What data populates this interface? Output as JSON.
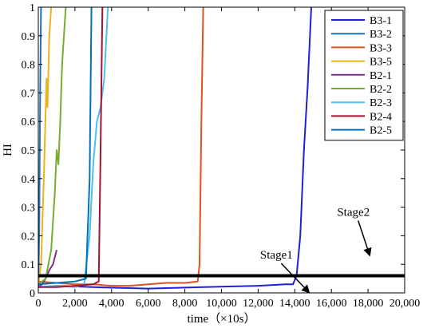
{
  "chart_data": {
    "type": "line",
    "title": "",
    "xlabel": "time（×10s）",
    "ylabel": "HI",
    "xlim": [
      0,
      20000
    ],
    "ylim": [
      0,
      1
    ],
    "xticks": [
      0,
      2000,
      4000,
      6000,
      8000,
      10000,
      12000,
      14000,
      16000,
      18000,
      20000
    ],
    "xtick_labels": [
      "0",
      "2,000",
      "4,000",
      "6,000",
      "8,000",
      "10,000",
      "12,000",
      "14,000",
      "16,000",
      "18,000",
      "20,000"
    ],
    "yticks": [
      0,
      0.1,
      0.2,
      0.3,
      0.4,
      0.5,
      0.6,
      0.7,
      0.8,
      0.9,
      1
    ],
    "ytick_labels": [
      "0",
      "0.1",
      "0.2",
      "0.3",
      "0.4",
      "0.5",
      "0.6",
      "0.7",
      "0.8",
      "0.9",
      "1"
    ],
    "grid": false,
    "legend_position": "top-right",
    "series": [
      {
        "name": "B3-1",
        "color": "#1f1fd6",
        "x": [
          0,
          1000,
          3000,
          6000,
          9000,
          12000,
          13500,
          13900,
          14100,
          14300,
          14500,
          14700,
          14900
        ],
        "y": [
          0.02,
          0.025,
          0.02,
          0.015,
          0.02,
          0.025,
          0.03,
          0.03,
          0.06,
          0.2,
          0.5,
          0.72,
          1.0
        ]
      },
      {
        "name": "B3-2",
        "color": "#1f6fb4",
        "x": [
          0,
          50,
          100,
          150
        ],
        "y": [
          0.02,
          0.2,
          0.7,
          1.0
        ]
      },
      {
        "name": "B3-3",
        "color": "#d9541e",
        "x": [
          0,
          1000,
          2000,
          3000,
          4000,
          5000,
          6000,
          7000,
          8000,
          8700,
          8800,
          8900,
          9000
        ],
        "y": [
          0.04,
          0.035,
          0.03,
          0.03,
          0.025,
          0.025,
          0.03,
          0.035,
          0.035,
          0.04,
          0.1,
          0.6,
          1.0
        ]
      },
      {
        "name": "B3-5",
        "color": "#edb120",
        "x": [
          0,
          150,
          300,
          450,
          500,
          600,
          700
        ],
        "y": [
          0.03,
          0.1,
          0.4,
          0.75,
          0.65,
          0.9,
          1.0
        ]
      },
      {
        "name": "B2-1",
        "color": "#7e2f8e",
        "x": [
          0,
          200,
          400,
          600,
          800,
          1000
        ],
        "y": [
          0.02,
          0.03,
          0.05,
          0.08,
          0.1,
          0.15
        ]
      },
      {
        "name": "B2-2",
        "color": "#77ac30",
        "x": [
          0,
          400,
          700,
          900,
          1000,
          1100,
          1200,
          1300,
          1500
        ],
        "y": [
          0.03,
          0.05,
          0.15,
          0.35,
          0.5,
          0.45,
          0.6,
          0.8,
          1.0
        ]
      },
      {
        "name": "B2-3",
        "color": "#4dbeee",
        "x": [
          0,
          1000,
          2000,
          2500,
          2800,
          3000,
          3200,
          3400,
          3600,
          3800
        ],
        "y": [
          0.02,
          0.025,
          0.02,
          0.03,
          0.2,
          0.45,
          0.6,
          0.65,
          0.75,
          1.0
        ]
      },
      {
        "name": "B2-4",
        "color": "#a2142f",
        "x": [
          0,
          1000,
          2000,
          3000,
          3300,
          3400,
          3500
        ],
        "y": [
          0.02,
          0.02,
          0.025,
          0.03,
          0.04,
          0.5,
          1.0
        ]
      },
      {
        "name": "B2-5",
        "color": "#0072bd",
        "x": [
          0,
          1000,
          2000,
          2600,
          2800,
          2900
        ],
        "y": [
          0.03,
          0.035,
          0.04,
          0.05,
          0.4,
          1.0
        ]
      }
    ],
    "threshold": {
      "y": 0.06,
      "color": "#000000"
    },
    "annotations": [
      {
        "text": "Stage1",
        "x": 13000,
        "y": 0.12,
        "arrow_to_x": 14800,
        "arrow_to_y": 0.0
      },
      {
        "text": "Stage2",
        "x": 17200,
        "y": 0.27,
        "arrow_to_x": 18100,
        "arrow_to_y": 0.13
      }
    ]
  }
}
